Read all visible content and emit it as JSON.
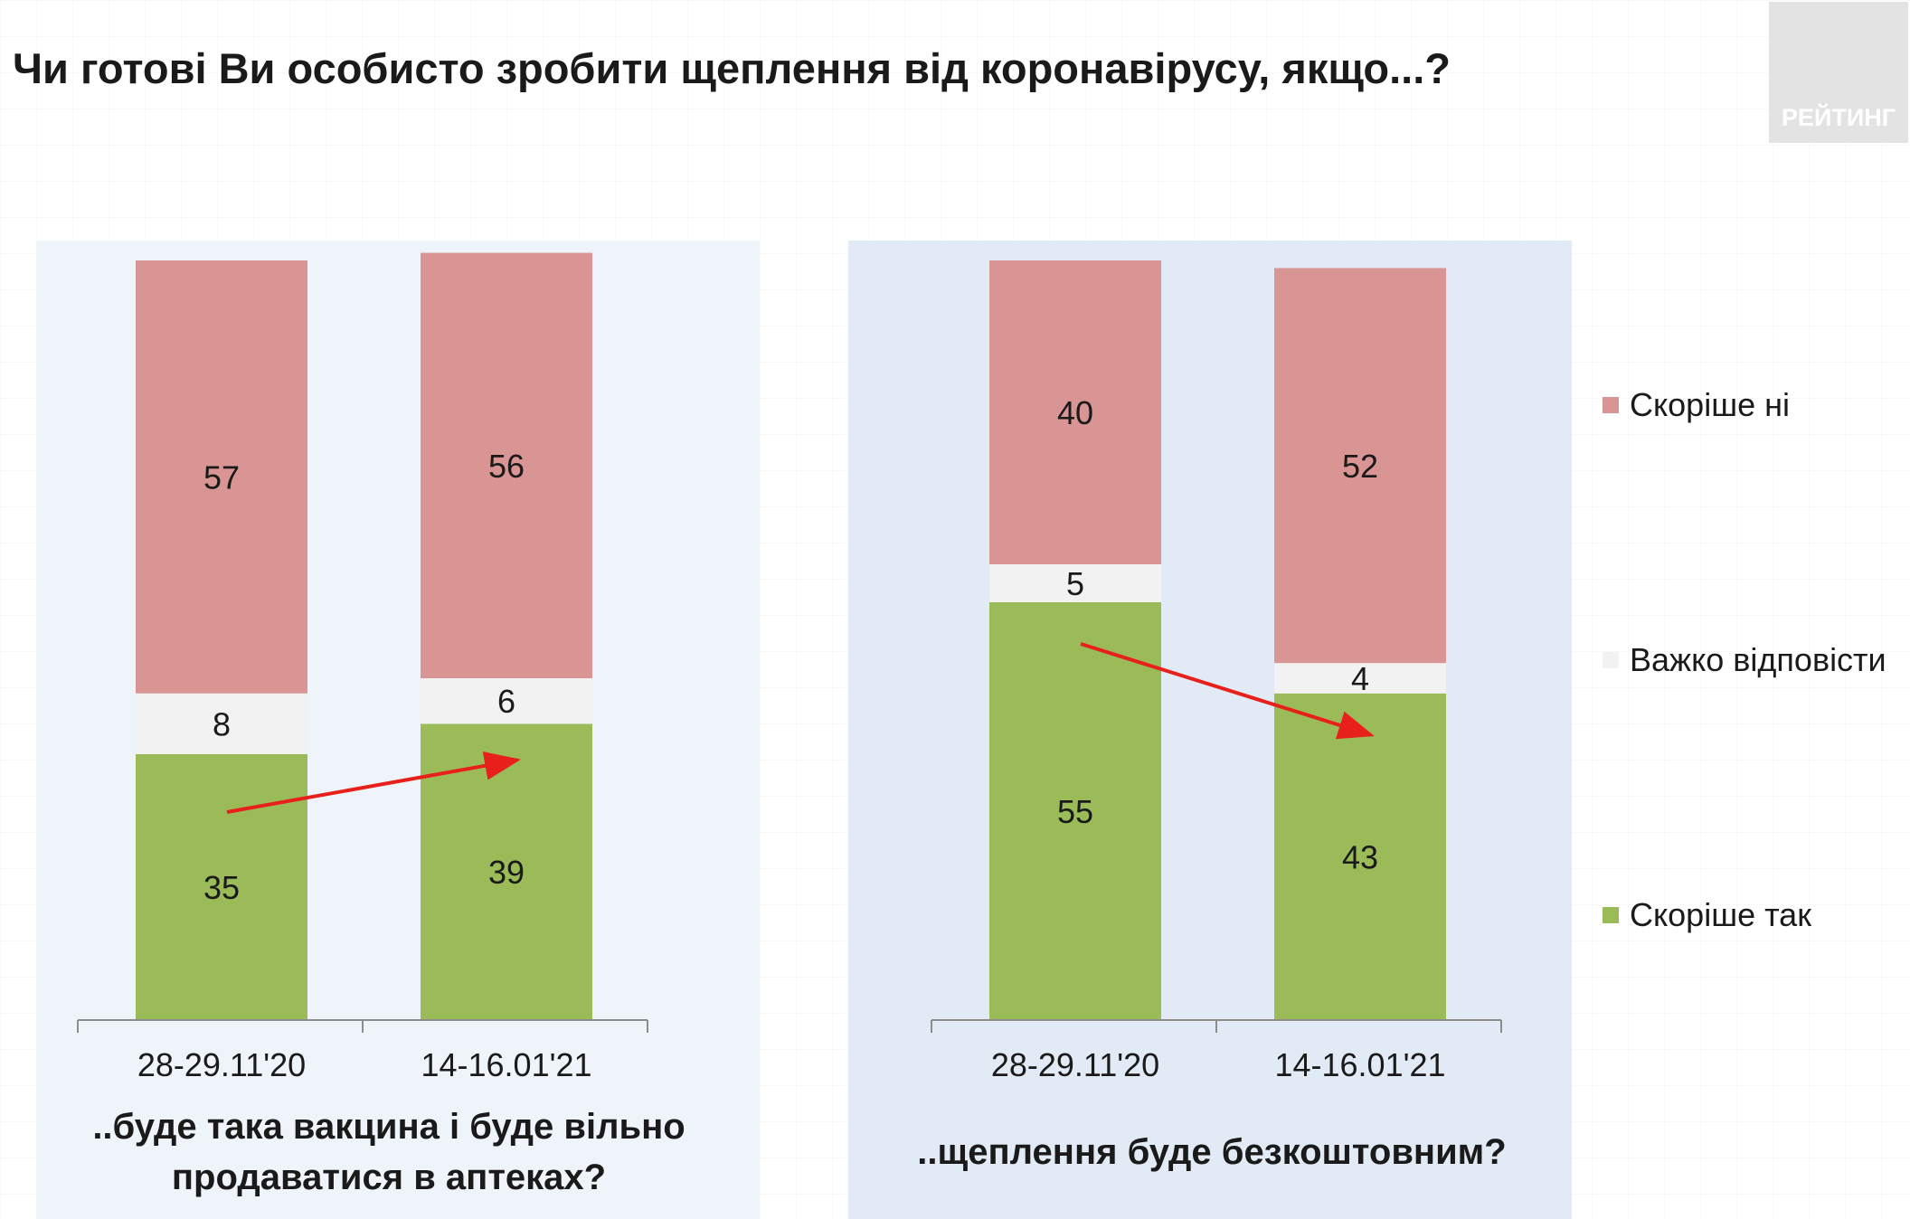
{
  "header": {
    "title": "Чи готові Ви особисто зробити щеплення від коронавірусу, якщо...?",
    "logo_text": "РЕЙТИНГ"
  },
  "chart_data": {
    "type": "bar",
    "stacked": true,
    "ylim": [
      0,
      100
    ],
    "grid": false,
    "legend_position": "right",
    "groups": [
      {
        "label_line1": "..буде така вакцина і буде вільно",
        "label_line2": "продаватися в аптеках?",
        "categories": [
          "28-29.11'20",
          "14-16.01'21"
        ],
        "trend": "up"
      },
      {
        "label_line1": "..щеплення буде безкоштовним?",
        "label_line2": "",
        "categories": [
          "28-29.11'20",
          "14-16.01'21"
        ],
        "trend": "down"
      }
    ],
    "series": [
      {
        "name": "Скоріше  так",
        "color": "#9bbb59",
        "values": [
          [
            35,
            39
          ],
          [
            55,
            43
          ]
        ]
      },
      {
        "name": "Важко відповісти",
        "color": "#f2f2f2",
        "values": [
          [
            8,
            6
          ],
          [
            5,
            4
          ]
        ]
      },
      {
        "name": "Скоріше  ні",
        "color": "#d99594",
        "values": [
          [
            57,
            56
          ],
          [
            40,
            52
          ]
        ]
      }
    ],
    "legend_order": [
      2,
      1,
      0
    ],
    "arrow_color": "#e8201c"
  }
}
